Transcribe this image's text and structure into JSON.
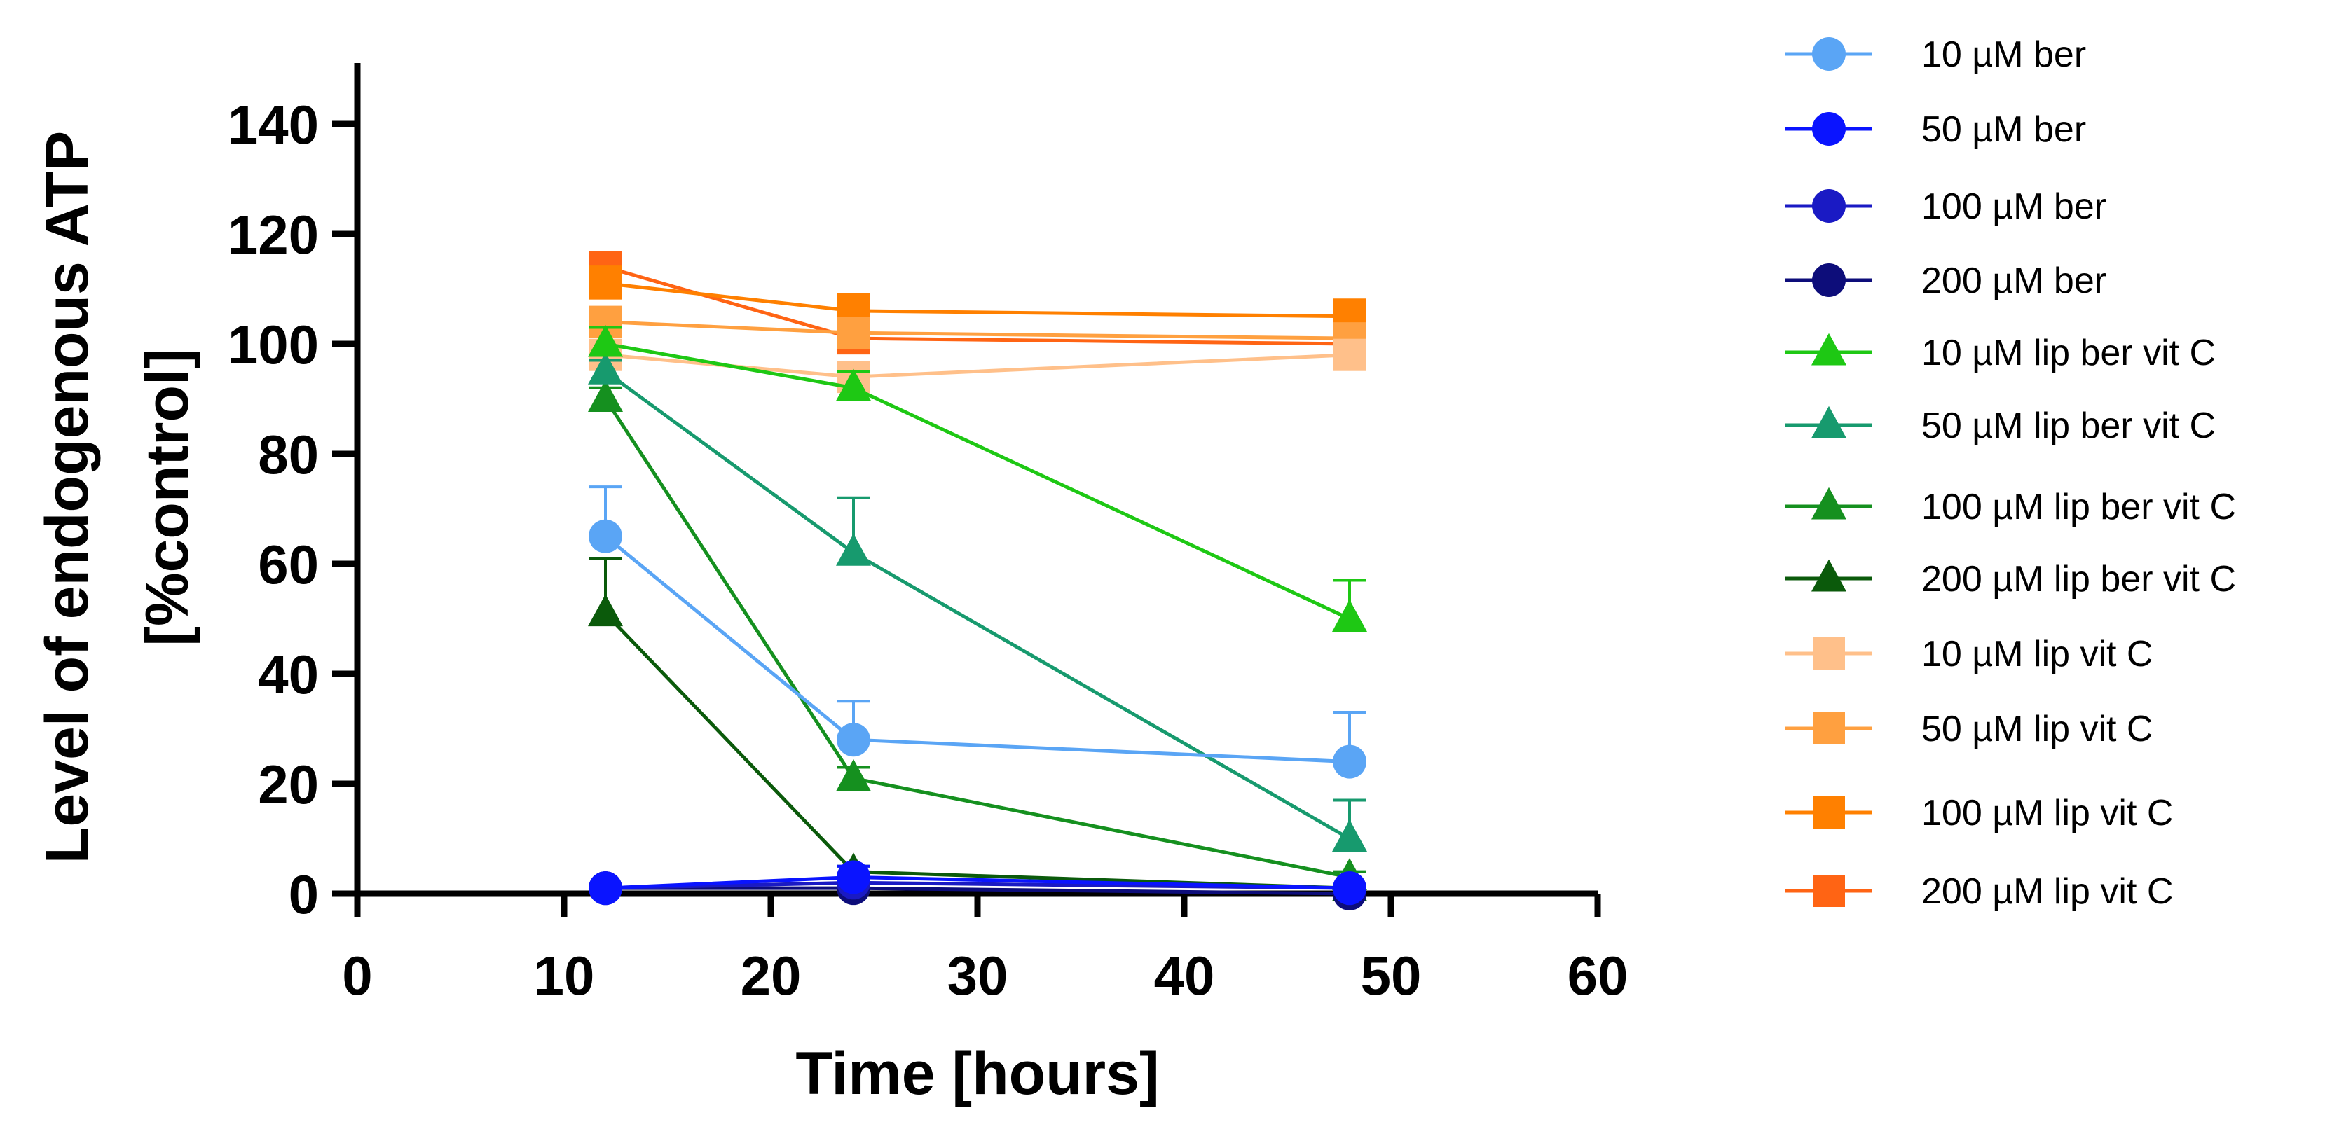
{
  "chart_data": {
    "type": "line",
    "title": "",
    "xlabel": "Time [hours]",
    "ylabel_lines": [
      "Level of endogenous ATP",
      "[%control]"
    ],
    "xlim": [
      0,
      60
    ],
    "ylim": [
      0,
      150
    ],
    "x_ticks": [
      0,
      10,
      20,
      30,
      40,
      50,
      60
    ],
    "y_ticks": [
      0,
      20,
      40,
      60,
      80,
      100,
      120,
      140
    ],
    "grid": false,
    "legend_position": "right",
    "x": [
      12,
      24,
      48
    ],
    "series": [
      {
        "name": "10 µM ber",
        "marker": "circle",
        "color": "#5aa5f5",
        "values": [
          65,
          28,
          24
        ],
        "errors": [
          9,
          7,
          9
        ]
      },
      {
        "name": "50 µM ber",
        "marker": "circle",
        "color": "#0a14ff",
        "values": [
          1,
          3,
          1
        ],
        "errors": [
          0,
          2,
          0
        ]
      },
      {
        "name": "100 µM ber",
        "marker": "circle",
        "color": "#1a1ac4",
        "values": [
          1,
          2,
          1
        ],
        "errors": [
          0,
          1,
          0
        ]
      },
      {
        "name": "200 µM ber",
        "marker": "circle",
        "color": "#0d0d7a",
        "values": [
          1,
          1,
          0
        ],
        "errors": [
          0,
          1,
          0
        ]
      },
      {
        "name": "10 µM lip ber vit C",
        "marker": "triangle",
        "color": "#1ec814",
        "values": [
          100,
          92,
          50
        ],
        "errors": [
          3,
          3,
          7
        ]
      },
      {
        "name": "50 µM lip ber vit C",
        "marker": "triangle",
        "color": "#179a6e",
        "values": [
          95,
          62,
          10
        ],
        "errors": [
          2,
          10,
          7
        ]
      },
      {
        "name": "100 µM lip ber vit C",
        "marker": "triangle",
        "color": "#15901f",
        "values": [
          90,
          21,
          3
        ],
        "errors": [
          2,
          2,
          1
        ]
      },
      {
        "name": "200 µM lip ber vit C",
        "marker": "triangle",
        "color": "#0b5a0b",
        "values": [
          51,
          4,
          1
        ],
        "errors": [
          10,
          1,
          0
        ]
      },
      {
        "name": "10 µM lip vit C",
        "marker": "square",
        "color": "#ffc08a",
        "values": [
          98,
          94,
          98
        ],
        "errors": [
          2,
          2,
          2
        ]
      },
      {
        "name": "50 µM lip vit C",
        "marker": "square",
        "color": "#ffa040",
        "values": [
          104,
          102,
          101
        ],
        "errors": [
          2,
          2,
          2
        ]
      },
      {
        "name": "100 µM lip vit C",
        "marker": "square",
        "color": "#ff8000",
        "values": [
          111,
          106,
          105
        ],
        "errors": [
          3,
          3,
          3
        ]
      },
      {
        "name": "200 µM lip vit C",
        "marker": "square",
        "color": "#ff6414",
        "values": [
          114,
          101,
          100
        ],
        "errors": [
          2,
          2,
          2
        ]
      }
    ]
  }
}
